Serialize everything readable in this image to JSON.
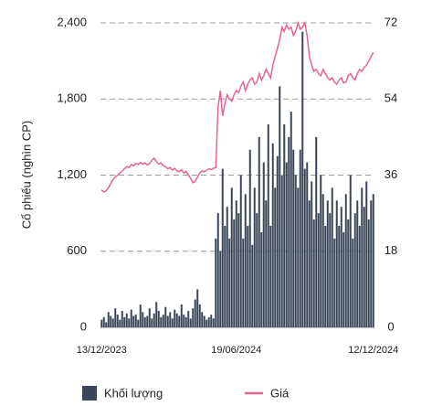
{
  "chart_data": {
    "type": "bar_line",
    "ylabel": "Cổ phiếu (nghìn CP)",
    "categories": [
      "13/12/2023",
      null,
      null,
      null,
      null,
      null,
      null,
      null,
      null,
      null,
      null,
      null,
      null,
      null,
      null,
      null,
      null,
      null,
      null,
      null,
      null,
      null,
      null,
      null,
      null,
      null,
      null,
      null,
      null,
      null,
      null,
      null,
      null,
      null,
      null,
      null,
      null,
      null,
      null,
      null,
      null,
      null,
      null,
      null,
      null,
      null,
      null,
      null,
      null,
      null,
      null,
      null,
      null,
      null,
      null,
      null,
      null,
      null,
      null,
      "19/06/2024",
      null,
      null,
      null,
      null,
      null,
      null,
      null,
      null,
      null,
      null,
      null,
      null,
      null,
      null,
      null,
      null,
      null,
      null,
      null,
      null,
      null,
      null,
      null,
      null,
      null,
      null,
      null,
      null,
      null,
      null,
      null,
      null,
      null,
      null,
      null,
      null,
      null,
      null,
      null,
      null,
      null,
      null,
      null,
      null,
      null,
      null,
      null,
      null,
      null,
      null,
      null,
      null,
      null,
      null,
      null,
      null,
      null,
      null,
      null,
      "12/12/2024"
    ],
    "series": [
      {
        "name": "Khối lượng",
        "type": "bar",
        "color": "#3b4658",
        "values": [
          60,
          80,
          40,
          120,
          90,
          70,
          150,
          100,
          60,
          130,
          80,
          110,
          70,
          140,
          90,
          100,
          60,
          180,
          120,
          80,
          90,
          150,
          70,
          110,
          200,
          130,
          80,
          100,
          160,
          90,
          120,
          70,
          140,
          110,
          90,
          180,
          100,
          80,
          130,
          70,
          150,
          220,
          300,
          180,
          120,
          90,
          60,
          80,
          100,
          70,
          700,
          900,
          600,
          1250,
          800,
          950,
          700,
          1100,
          850,
          1000,
          900,
          1200,
          700,
          1050,
          800,
          1400,
          650,
          1100,
          900,
          1500,
          750,
          1300,
          1000,
          1600,
          800,
          1450,
          1100,
          1350,
          1900,
          1200,
          1600,
          1300,
          1500,
          1700,
          1400,
          1200,
          1100,
          1400,
          2330,
          1250,
          1300,
          1000,
          1150,
          850,
          1500,
          900,
          1200,
          1050,
          800,
          1000,
          900,
          1100,
          700,
          1000,
          800,
          950,
          750,
          1050,
          850,
          1200,
          700,
          900,
          1000,
          800,
          1100,
          950,
          1150,
          850,
          1000,
          1050
        ]
      },
      {
        "name": "Giá",
        "type": "line",
        "axis": "y2",
        "color": "#e8648f",
        "values": [
          32.5,
          32,
          32.3,
          33,
          34,
          35,
          35.5,
          36,
          36.5,
          37,
          37.5,
          38,
          37.8,
          38.5,
          38.2,
          38.8,
          38.5,
          39,
          38.6,
          38.9,
          38.4,
          38.7,
          39.5,
          40,
          39.2,
          38.6,
          38.9,
          38.2,
          38,
          37.5,
          37.8,
          37.2,
          37.6,
          37,
          36.8,
          37.3,
          36.5,
          36.9,
          36,
          35.2,
          34.2,
          34.5,
          35.5,
          36.5,
          37,
          36.8,
          37.2,
          37.5,
          37.3,
          37.6,
          37.8,
          52,
          56,
          50,
          53,
          55,
          54,
          53.5,
          55,
          56,
          55.5,
          57,
          58,
          56,
          57.5,
          58.5,
          59,
          57.5,
          58,
          60,
          58.5,
          59.5,
          61,
          60,
          59,
          62,
          64,
          66,
          68,
          71,
          70,
          71.5,
          70.5,
          71,
          69,
          70,
          72,
          70.5,
          71,
          72,
          69,
          64,
          62,
          60.5,
          61,
          60,
          59.5,
          61,
          60,
          59,
          58.5,
          59,
          58,
          57.5,
          58.5,
          59,
          57.8,
          58,
          59.5,
          60,
          59,
          58.5,
          60,
          61,
          60.5,
          61.5,
          62,
          63,
          64,
          65
        ]
      }
    ],
    "ylim": [
      0,
      2400
    ],
    "yticks": [
      0,
      600,
      {
        "value": 1200,
        "label": "1,200"
      },
      {
        "value": 1800,
        "label": "1,800"
      },
      {
        "value": 2400,
        "label": "2,400"
      }
    ],
    "y2lim": [
      0,
      72
    ],
    "y2ticks": [
      0,
      18,
      36,
      54,
      72
    ],
    "grid": true,
    "legend": "bottom"
  }
}
